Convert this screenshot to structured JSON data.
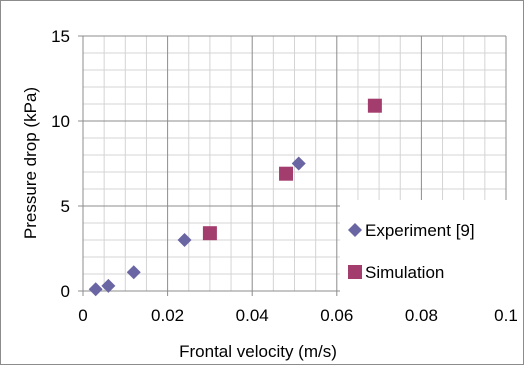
{
  "chart_data": {
    "type": "scatter",
    "title": "",
    "xlabel": "Frontal velocity (m/s)",
    "ylabel": "Pressure drop (kPa)",
    "xlim": [
      0,
      0.1
    ],
    "ylim": [
      0,
      15
    ],
    "x_ticks": [
      0,
      0.02,
      0.04,
      0.06,
      0.08,
      0.1
    ],
    "x_tick_labels": [
      "0",
      "0.02",
      "0.04",
      "0.06",
      "0.08",
      "0.1"
    ],
    "y_ticks": [
      0,
      5,
      10,
      15
    ],
    "y_tick_labels": [
      "0",
      "5",
      "10",
      "15"
    ],
    "grid": true,
    "minor_grid": true,
    "legend_position": "bottom-right",
    "series": [
      {
        "name": "Experiment [9]",
        "marker": "diamond",
        "color": "#6a66a3",
        "x": [
          0.003,
          0.006,
          0.012,
          0.024,
          0.051
        ],
        "y": [
          0.1,
          0.3,
          1.1,
          3.0,
          7.5
        ]
      },
      {
        "name": "Simulation",
        "marker": "square",
        "color": "#a33d6d",
        "x": [
          0.03,
          0.048,
          0.069
        ],
        "y": [
          3.4,
          6.9,
          10.9
        ]
      }
    ]
  }
}
